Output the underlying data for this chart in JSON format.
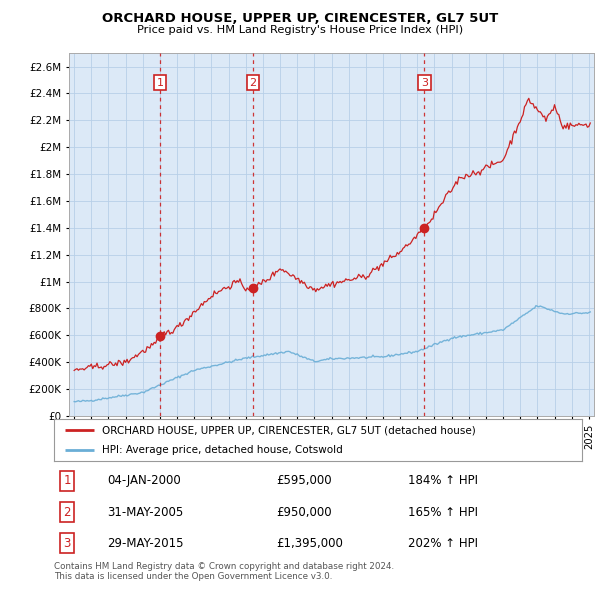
{
  "title": "ORCHARD HOUSE, UPPER UP, CIRENCESTER, GL7 5UT",
  "subtitle": "Price paid vs. HM Land Registry's House Price Index (HPI)",
  "legend_line1": "ORCHARD HOUSE, UPPER UP, CIRENCESTER, GL7 5UT (detached house)",
  "legend_line2": "HPI: Average price, detached house, Cotswold",
  "sale_prices": [
    595000,
    950000,
    1395000
  ],
  "sale_labels": [
    "1",
    "2",
    "3"
  ],
  "sale_years": [
    2000.01,
    2005.42,
    2015.41
  ],
  "sale_info": [
    {
      "num": "1",
      "date": "04-JAN-2000",
      "price": "£595,000",
      "pct": "184% ↑ HPI"
    },
    {
      "num": "2",
      "date": "31-MAY-2005",
      "price": "£950,000",
      "pct": "165% ↑ HPI"
    },
    {
      "num": "3",
      "date": "29-MAY-2015",
      "price": "£1,395,000",
      "pct": "202% ↑ HPI"
    }
  ],
  "footer": "Contains HM Land Registry data © Crown copyright and database right 2024.\nThis data is licensed under the Open Government Licence v3.0.",
  "hpi_color": "#6aaed6",
  "price_color": "#cc2222",
  "sale_marker_color": "#cc2222",
  "chart_bg": "#dce9f7",
  "background_color": "#ffffff",
  "grid_color": "#b8cfe8",
  "ylim": [
    0,
    2700000
  ],
  "yticks": [
    0,
    200000,
    400000,
    600000,
    800000,
    1000000,
    1200000,
    1400000,
    1600000,
    1800000,
    2000000,
    2200000,
    2400000,
    2600000
  ],
  "xlim_start": 1994.7,
  "xlim_end": 2025.3
}
